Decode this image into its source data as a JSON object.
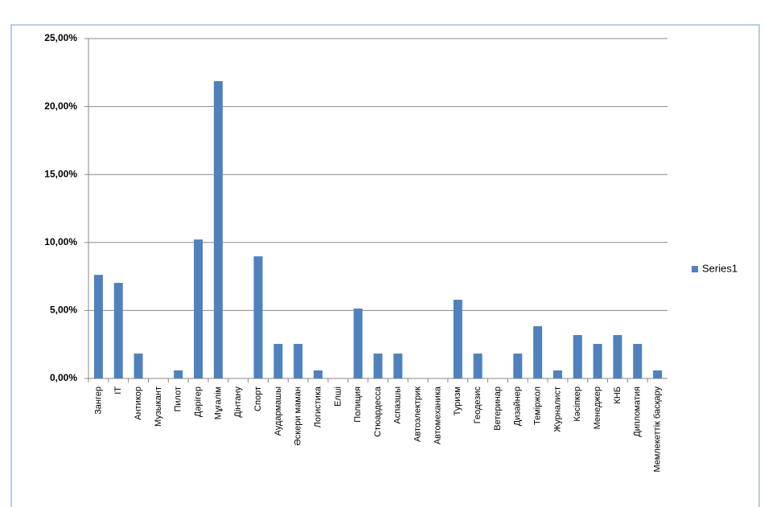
{
  "chart_data": {
    "type": "bar",
    "categories": [
      "Зангер",
      "IT",
      "Антикор",
      "Музыкант",
      "Пилот",
      "Дәрігер",
      "Мұғалім",
      "Дінтану",
      "Спорт",
      "Аудармашы",
      "Әскери маман",
      "Логистика",
      "Елші",
      "Полиция",
      "Стюардесса",
      "Аспазшы",
      "Автоэлектрик",
      "Автомеханика",
      "Туризм",
      "Геодезис",
      "Ветеринар",
      "Дизайнер",
      "Теміржол",
      "Журналист",
      "Кәсіпкер",
      "Менеджер",
      "КНБ",
      "Дипломатия",
      "Мемлекеттік басқару"
    ],
    "series": [
      {
        "name": "Series1",
        "color": "#4f81bd",
        "values": [
          7.62,
          7.03,
          1.83,
          0,
          0.59,
          10.22,
          21.87,
          0,
          8.98,
          2.54,
          2.54,
          0.59,
          0,
          5.14,
          1.83,
          1.83,
          0,
          0,
          5.79,
          1.83,
          0,
          1.83,
          3.84,
          0.59,
          3.19,
          2.54,
          3.19,
          2.54,
          0.59
        ]
      }
    ],
    "ylim": [
      0,
      25
    ],
    "yticks": [
      {
        "value": 0,
        "label": "0,00%"
      },
      {
        "value": 5,
        "label": "5,00%"
      },
      {
        "value": 10,
        "label": "10,00%"
      },
      {
        "value": 15,
        "label": "15,00%"
      },
      {
        "value": 20,
        "label": "20,00%"
      },
      {
        "value": 25,
        "label": "25,00%"
      }
    ],
    "grid": true,
    "legend": "right"
  }
}
